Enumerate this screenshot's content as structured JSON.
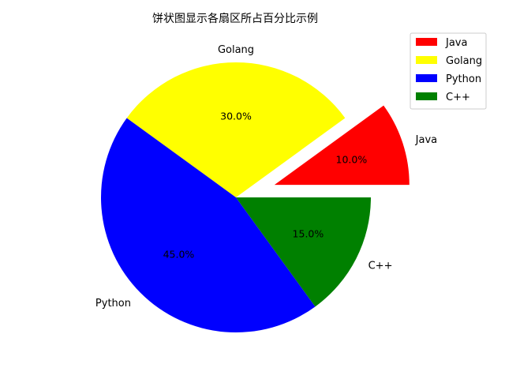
{
  "chart_data": {
    "type": "pie",
    "title": "饼状图显示各扇区所占百分比示例",
    "categories": [
      "Java",
      "Golang",
      "Python",
      "C++"
    ],
    "values": [
      10,
      30,
      45,
      15
    ],
    "percent_labels": [
      "10.0%",
      "30.0%",
      "45.0%",
      "15.0%"
    ],
    "colors": [
      "#ff0000",
      "#ffff00",
      "#0000ff",
      "#008000"
    ],
    "explode": [
      0.3,
      0,
      0,
      0
    ],
    "start_angle": 0,
    "direction": "counterclockwise",
    "legend": {
      "placement": "top-right",
      "entries": [
        "Java",
        "Golang",
        "Python",
        "C++"
      ]
    }
  }
}
